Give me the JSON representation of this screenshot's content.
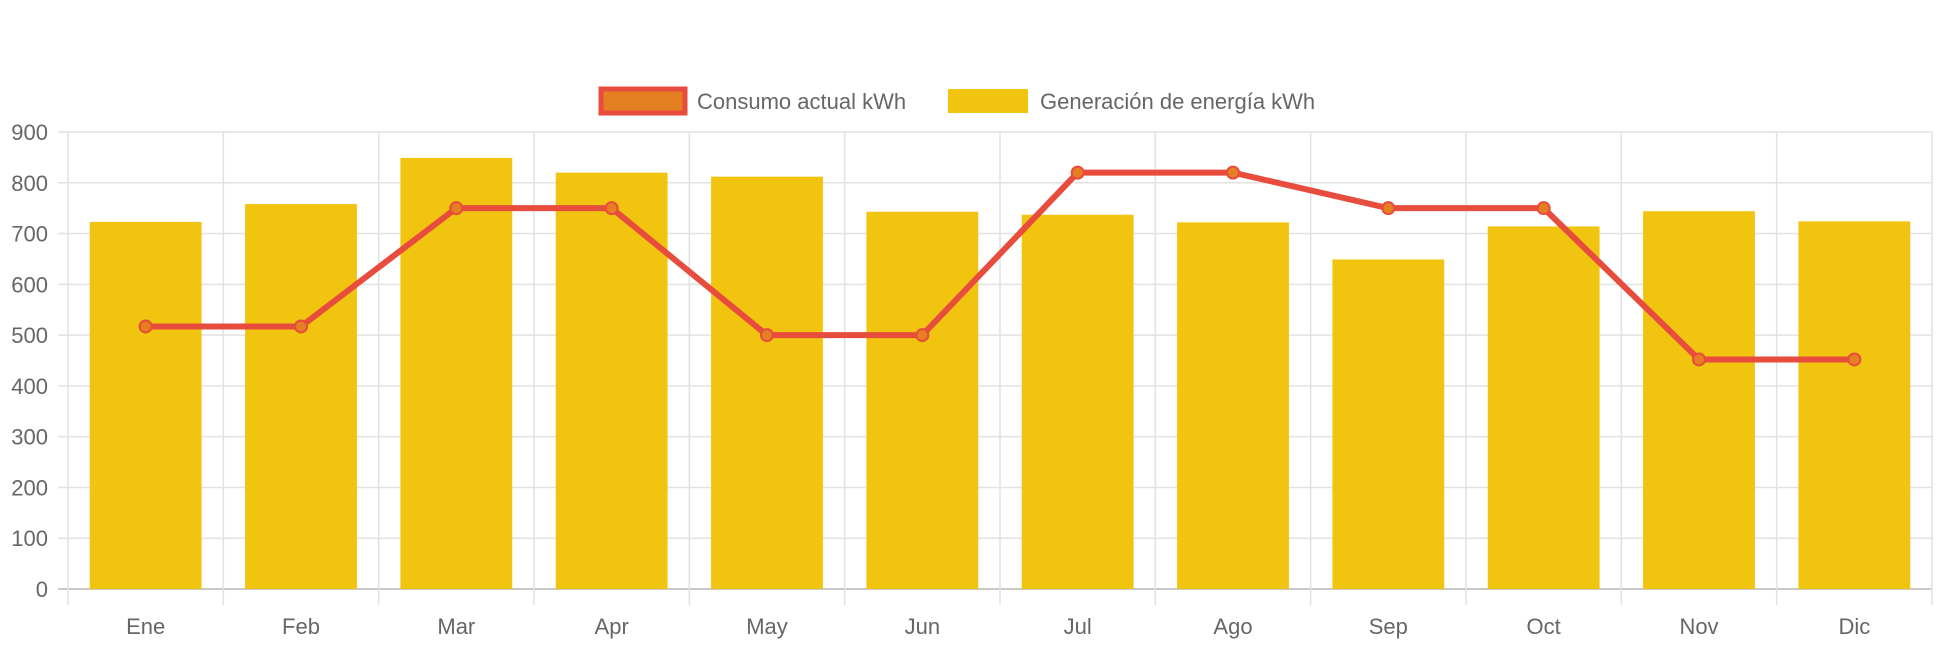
{
  "chart_data": {
    "type": "bar",
    "title": "",
    "xlabel": "",
    "ylabel": "",
    "categories": [
      "Ene",
      "Feb",
      "Mar",
      "Apr",
      "May",
      "Jun",
      "Jul",
      "Ago",
      "Sep",
      "Oct",
      "Nov",
      "Dic"
    ],
    "ylim": [
      0,
      900
    ],
    "yticks": [
      0,
      100,
      200,
      300,
      400,
      500,
      600,
      700,
      800,
      900
    ],
    "grid": true,
    "legend_position": "top",
    "series": [
      {
        "name": "Consumo actual kWh",
        "type": "line",
        "color": "#e74c3c",
        "point_color": "#e67e22",
        "values": [
          517,
          517,
          750,
          750,
          500,
          500,
          820,
          820,
          750,
          750,
          452,
          452
        ]
      },
      {
        "name": "Generación de energía kWh",
        "type": "bar",
        "color": "#f1c40f",
        "values": [
          723,
          758,
          849,
          820,
          812,
          743,
          737,
          722,
          649,
          714,
          744,
          724
        ]
      }
    ]
  }
}
